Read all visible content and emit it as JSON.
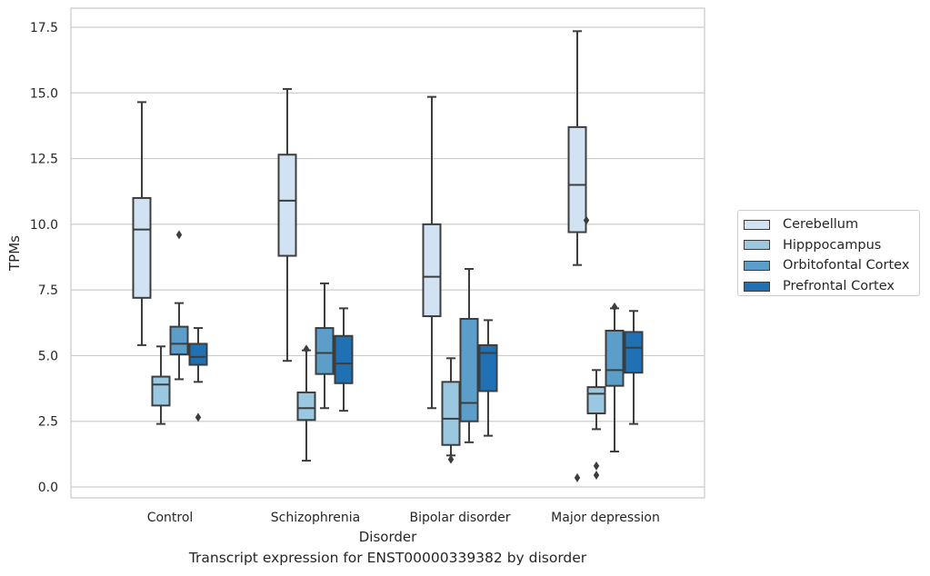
{
  "chart_data": {
    "type": "box",
    "title": "",
    "caption": "Transcript expression for ENST00000339382 by disorder",
    "xlabel": "Disorder",
    "ylabel": "TPMs",
    "ylim": [
      -0.4,
      18.2
    ],
    "yticks": [
      "0.0",
      "2.5",
      "5.0",
      "7.5",
      "10.0",
      "12.5",
      "15.0",
      "17.5"
    ],
    "ytick_values": [
      0,
      2.5,
      5,
      7.5,
      10,
      12.5,
      15,
      17.5
    ],
    "grid": "horizontal",
    "legend_position": "right",
    "categories": [
      "Control",
      "Schizophrenia",
      "Bipolar disorder",
      "Major depression"
    ],
    "series": [
      {
        "name": "Cerebellum",
        "color": "#d1e2f2",
        "boxes": [
          {
            "whislo": 5.4,
            "q1": 7.2,
            "med": 9.8,
            "q3": 11.0,
            "whishi": 14.65,
            "fliers": []
          },
          {
            "whislo": 4.8,
            "q1": 8.8,
            "med": 10.9,
            "q3": 12.65,
            "whishi": 15.15,
            "fliers": []
          },
          {
            "whislo": 3.0,
            "q1": 6.5,
            "med": 8.0,
            "q3": 10.0,
            "whishi": 14.85,
            "fliers": []
          },
          {
            "whislo": 8.45,
            "q1": 9.7,
            "med": 11.5,
            "q3": 13.7,
            "whishi": 17.35,
            "fliers": []
          }
        ]
      },
      {
        "name": "Hipppocampus",
        "color": "#9ac8e0",
        "boxes": [
          {
            "whislo": 2.4,
            "q1": 3.1,
            "med": 3.9,
            "q3": 4.2,
            "whishi": 5.35,
            "fliers": []
          },
          {
            "whislo": 1.0,
            "q1": 2.55,
            "med": 3.0,
            "q3": 3.6,
            "whishi": 5.2,
            "fliers": [
              5.25
            ]
          },
          {
            "whislo": 1.2,
            "q1": 1.6,
            "med": 2.6,
            "q3": 4.0,
            "whishi": 4.9,
            "fliers": [
              1.05
            ]
          },
          {
            "whislo": 2.2,
            "q1": 2.8,
            "med": 3.55,
            "q3": 3.8,
            "whishi": 4.45,
            "fliers": [
              0.45,
              0.8
            ]
          }
        ]
      },
      {
        "name": "Orbitofontal Cortex",
        "color": "#5a9ec9",
        "boxes": [
          {
            "whislo": 4.1,
            "q1": 5.05,
            "med": 5.45,
            "q3": 6.1,
            "whishi": 7.0,
            "fliers": [
              9.6
            ]
          },
          {
            "whislo": 3.0,
            "q1": 4.3,
            "med": 5.1,
            "q3": 6.05,
            "whishi": 7.75,
            "fliers": []
          },
          {
            "whislo": 1.7,
            "q1": 2.5,
            "med": 3.2,
            "q3": 6.4,
            "whishi": 8.3,
            "fliers": []
          },
          {
            "whislo": 1.35,
            "q1": 3.85,
            "med": 4.45,
            "q3": 5.95,
            "whishi": 6.8,
            "fliers": [
              6.85
            ]
          }
        ]
      },
      {
        "name": "Prefrontal Cortex",
        "color": "#2070b4",
        "boxes": [
          {
            "whislo": 4.0,
            "q1": 4.65,
            "med": 4.95,
            "q3": 5.45,
            "whishi": 6.05,
            "fliers": [
              2.65
            ]
          },
          {
            "whislo": 2.9,
            "q1": 3.95,
            "med": 4.7,
            "q3": 5.75,
            "whishi": 6.8,
            "fliers": []
          },
          {
            "whislo": 1.95,
            "q1": 3.65,
            "med": 5.1,
            "q3": 5.4,
            "whishi": 6.35,
            "fliers": []
          },
          {
            "whislo": 2.4,
            "q1": 4.35,
            "med": 5.3,
            "q3": 5.9,
            "whishi": 6.7,
            "fliers": []
          }
        ]
      }
    ],
    "extra_fliers": [
      {
        "series": 0,
        "category": 3,
        "value": 10.15
      },
      {
        "series": 0,
        "category": 3,
        "value": 0.35
      }
    ]
  }
}
